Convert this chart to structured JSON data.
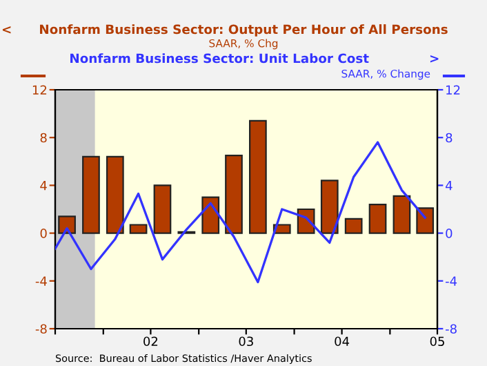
{
  "chart_data": {
    "type": "bar",
    "x": [
      "2001-08-15",
      "2001-11-15",
      "2002-02-15",
      "2002-05-15",
      "2002-08-15",
      "2002-11-15",
      "2003-02-15",
      "2003-05-15",
      "2003-08-15",
      "2003-11-15",
      "2004-02-15",
      "2004-05-15",
      "2004-08-15",
      "2004-11-15",
      "2005-02-15",
      "2005-05-15"
    ],
    "series": [
      {
        "name": "Nonfarm Business Sector: Output Per Hour of All Persons",
        "color": "#b33c00",
        "values": [
          1.4,
          6.4,
          6.4,
          0.7,
          4.0,
          0.1,
          3.0,
          6.5,
          9.4,
          0.7,
          2.0,
          4.4,
          1.2,
          2.4,
          3.1,
          2.1
        ]
      },
      {
        "name": "Nonfarm Business Sector: Unit Labor Cost",
        "type": "line",
        "axis": "y2",
        "color": "#3333ff",
        "x": [
          "2001-07-01",
          "2001-08-15",
          "2001-11-15",
          "2002-02-15",
          "2002-05-15",
          "2002-08-15",
          "2002-11-15",
          "2003-02-15",
          "2003-05-15",
          "2003-08-15",
          "2003-11-15",
          "2004-02-15",
          "2004-05-15",
          "2004-08-15",
          "2004-11-15",
          "2005-02-15",
          "2005-05-15"
        ],
        "values": [
          -1.3,
          0.4,
          -3.0,
          -0.5,
          3.3,
          -2.2,
          0.3,
          2.5,
          -0.3,
          -4.1,
          2.0,
          1.3,
          -0.8,
          4.7,
          7.6,
          3.6,
          1.3
        ]
      }
    ],
    "ylabel": "SAAR, % Chg",
    "y2label": "SAAR, % Change",
    "xlim": [
      "2001-07-01",
      "2005-07-01"
    ],
    "xticks": [
      {
        "value": "2001-07-01",
        "label": null
      },
      {
        "value": "2002-01-01",
        "label": null
      },
      {
        "value": "2002-07-01",
        "label": "02"
      },
      {
        "value": "2003-01-01",
        "label": null
      },
      {
        "value": "2003-07-01",
        "label": "03"
      },
      {
        "value": "2004-01-01",
        "label": null
      },
      {
        "value": "2004-07-01",
        "label": "04"
      },
      {
        "value": "2005-01-01",
        "label": null
      },
      {
        "value": "2005-07-01",
        "label": "05"
      }
    ],
    "ylim": [
      -8,
      12
    ],
    "yticks": [
      -8,
      -4,
      0,
      4,
      8,
      12
    ],
    "y2lim": [
      -8,
      12
    ],
    "y2ticks": [
      -8,
      -4,
      0,
      4,
      8,
      12
    ],
    "bands": [
      {
        "axis": "x",
        "from": "2001-07-01",
        "to": "2001-11-30",
        "color": "#c8c8c8"
      }
    ],
    "annotations": [
      "<",
      ">",
      "Source:  Bureau of Labor Statistics /Haver Analytics"
    ],
    "legend": "top",
    "grid": false
  }
}
